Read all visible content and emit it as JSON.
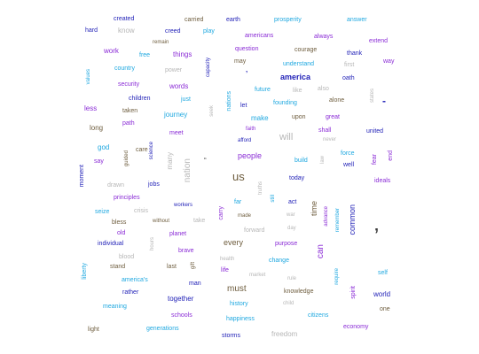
{
  "palette": {
    "cyan": "#1fa8e0",
    "purple": "#8a2bd6",
    "blue": "#2323b8",
    "olive": "#6e5d3e",
    "grey": "#b7b7b7",
    "dark": "#3a3a3a"
  },
  "words": [
    {
      "text": "created",
      "color": "blue"
    },
    {
      "text": "carried",
      "color": "olive"
    },
    {
      "text": "earth",
      "color": "blue"
    },
    {
      "text": "prosperity",
      "color": "cyan"
    },
    {
      "text": "answer",
      "color": "cyan"
    },
    {
      "text": "hard",
      "color": "blue"
    },
    {
      "text": "know",
      "color": "grey"
    },
    {
      "text": "creed",
      "color": "blue"
    },
    {
      "text": "play",
      "color": "cyan"
    },
    {
      "text": "americans",
      "color": "purple"
    },
    {
      "text": "always",
      "color": "purple"
    },
    {
      "text": "remain",
      "color": "olive"
    },
    {
      "text": "extend",
      "color": "purple"
    },
    {
      "text": "work",
      "color": "purple"
    },
    {
      "text": "free",
      "color": "cyan"
    },
    {
      "text": "things",
      "color": "purple"
    },
    {
      "text": "question",
      "color": "purple"
    },
    {
      "text": "courage",
      "color": "olive"
    },
    {
      "text": "thank",
      "color": "blue"
    },
    {
      "text": "may",
      "color": "olive"
    },
    {
      "text": "understand",
      "color": "cyan"
    },
    {
      "text": "first",
      "color": "grey"
    },
    {
      "text": "way",
      "color": "purple"
    },
    {
      "text": "country",
      "color": "cyan"
    },
    {
      "text": "power",
      "color": "grey"
    },
    {
      "text": "america",
      "color": "blue"
    },
    {
      "text": "oath",
      "color": "blue"
    },
    {
      "text": "values",
      "color": "cyan"
    },
    {
      "text": "capacity",
      "color": "blue"
    },
    {
      "text": "security",
      "color": "purple"
    },
    {
      "text": "words",
      "color": "purple"
    },
    {
      "text": "future",
      "color": "cyan"
    },
    {
      "text": "like",
      "color": "grey"
    },
    {
      "text": "also",
      "color": "grey"
    },
    {
      "text": "children",
      "color": "blue"
    },
    {
      "text": "just",
      "color": "cyan"
    },
    {
      "text": "nations",
      "color": "cyan"
    },
    {
      "text": "founding",
      "color": "cyan"
    },
    {
      "text": "alone",
      "color": "olive"
    },
    {
      "text": "states",
      "color": "grey"
    },
    {
      "text": "less",
      "color": "purple"
    },
    {
      "text": "taken",
      "color": "olive"
    },
    {
      "text": "let",
      "color": "blue"
    },
    {
      "text": "journey",
      "color": "cyan"
    },
    {
      "text": "seek",
      "color": "grey"
    },
    {
      "text": "make",
      "color": "cyan"
    },
    {
      "text": "upon",
      "color": "olive"
    },
    {
      "text": "great",
      "color": "purple"
    },
    {
      "text": "path",
      "color": "purple"
    },
    {
      "text": "long",
      "color": "olive"
    },
    {
      "text": "faith",
      "color": "purple"
    },
    {
      "text": "shall",
      "color": "purple"
    },
    {
      "text": "united",
      "color": "blue"
    },
    {
      "text": "meet",
      "color": "purple"
    },
    {
      "text": "will",
      "color": "grey"
    },
    {
      "text": "never",
      "color": "grey"
    },
    {
      "text": "afford",
      "color": "blue"
    },
    {
      "text": "god",
      "color": "cyan"
    },
    {
      "text": "science",
      "color": "blue"
    },
    {
      "text": "care",
      "color": "olive"
    },
    {
      "text": "force",
      "color": "cyan"
    },
    {
      "text": "guided",
      "color": "olive"
    },
    {
      "text": "many",
      "color": "grey"
    },
    {
      "text": "people",
      "color": "purple"
    },
    {
      "text": "end",
      "color": "purple"
    },
    {
      "text": "fear",
      "color": "purple"
    },
    {
      "text": "say",
      "color": "purple"
    },
    {
      "text": "nation",
      "color": "grey"
    },
    {
      "text": "build",
      "color": "cyan"
    },
    {
      "text": "well",
      "color": "blue"
    },
    {
      "text": "moment",
      "color": "blue"
    },
    {
      "text": "law",
      "color": "grey"
    },
    {
      "text": "us",
      "color": "olive"
    },
    {
      "text": "ideals",
      "color": "purple"
    },
    {
      "text": "drawn",
      "color": "grey"
    },
    {
      "text": "jobs",
      "color": "blue"
    },
    {
      "text": "today",
      "color": "blue"
    },
    {
      "text": "truths",
      "color": "grey"
    },
    {
      "text": "principles",
      "color": "purple"
    },
    {
      "text": "still",
      "color": "cyan"
    },
    {
      "text": "act",
      "color": "blue"
    },
    {
      "text": "workers",
      "color": "blue"
    },
    {
      "text": "far",
      "color": "cyan"
    },
    {
      "text": "time",
      "color": "olive"
    },
    {
      "text": "advance",
      "color": "purple"
    },
    {
      "text": "seize",
      "color": "cyan"
    },
    {
      "text": "crisis",
      "color": "grey"
    },
    {
      "text": "carry",
      "color": "purple"
    },
    {
      "text": "made",
      "color": "olive"
    },
    {
      "text": "war",
      "color": "grey"
    },
    {
      "text": "remember",
      "color": "cyan"
    },
    {
      "text": "common",
      "color": "blue"
    },
    {
      "text": "bless",
      "color": "olive"
    },
    {
      "text": "without",
      "color": "olive"
    },
    {
      "text": "take",
      "color": "grey"
    },
    {
      "text": "old",
      "color": "purple"
    },
    {
      "text": "planet",
      "color": "purple"
    },
    {
      "text": "forward",
      "color": "grey"
    },
    {
      "text": "day",
      "color": "grey"
    },
    {
      "text": "individual",
      "color": "blue"
    },
    {
      "text": "hours",
      "color": "grey"
    },
    {
      "text": "every",
      "color": "olive"
    },
    {
      "text": "purpose",
      "color": "purple"
    },
    {
      "text": "can",
      "color": "purple"
    },
    {
      "text": "brave",
      "color": "purple"
    },
    {
      "text": "blood",
      "color": "grey"
    },
    {
      "text": "health",
      "color": "grey"
    },
    {
      "text": "change",
      "color": "cyan"
    },
    {
      "text": "liberty",
      "color": "cyan"
    },
    {
      "text": "stand",
      "color": "olive"
    },
    {
      "text": "last",
      "color": "olive"
    },
    {
      "text": "gift",
      "color": "olive"
    },
    {
      "text": "life",
      "color": "purple"
    },
    {
      "text": "self",
      "color": "cyan"
    },
    {
      "text": "market",
      "color": "grey"
    },
    {
      "text": "rule",
      "color": "grey"
    },
    {
      "text": "america's",
      "color": "cyan"
    },
    {
      "text": "man",
      "color": "blue"
    },
    {
      "text": "require",
      "color": "cyan"
    },
    {
      "text": "rather",
      "color": "blue"
    },
    {
      "text": "must",
      "color": "olive"
    },
    {
      "text": "knowledge",
      "color": "olive"
    },
    {
      "text": "spirit",
      "color": "purple"
    },
    {
      "text": "world",
      "color": "blue"
    },
    {
      "text": "together",
      "color": "blue"
    },
    {
      "text": "meaning",
      "color": "cyan"
    },
    {
      "text": "history",
      "color": "cyan"
    },
    {
      "text": "child",
      "color": "grey"
    },
    {
      "text": "one",
      "color": "olive"
    },
    {
      "text": "schools",
      "color": "purple"
    },
    {
      "text": "citizens",
      "color": "cyan"
    },
    {
      "text": "happiness",
      "color": "cyan"
    },
    {
      "text": "light",
      "color": "olive"
    },
    {
      "text": "generations",
      "color": "cyan"
    },
    {
      "text": "economy",
      "color": "purple"
    },
    {
      "text": "storms",
      "color": "blue"
    },
    {
      "text": "freedom",
      "color": "grey"
    },
    {
      "text": "’",
      "color": "blue"
    },
    {
      "text": "-",
      "color": "blue"
    },
    {
      "text": "“",
      "color": "dark"
    },
    {
      "text": "’",
      "color": "dark"
    }
  ]
}
